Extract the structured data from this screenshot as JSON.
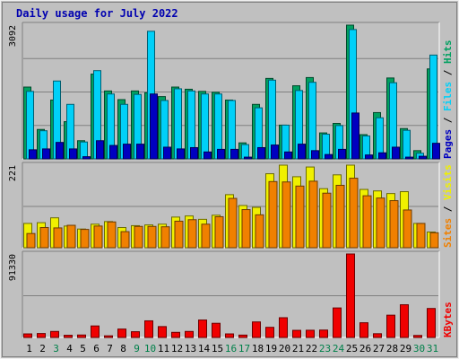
{
  "chart_data": {
    "type": "bar",
    "title": "Daily usage for July 2022",
    "x": [
      "1",
      "2",
      "3",
      "4",
      "5",
      "6",
      "7",
      "8",
      "9",
      "10",
      "11",
      "12",
      "13",
      "14",
      "15",
      "16",
      "17",
      "18",
      "19",
      "20",
      "21",
      "22",
      "23",
      "24",
      "25",
      "26",
      "27",
      "28",
      "29",
      "30",
      "31"
    ],
    "weekend_days": [
      "3",
      "9",
      "10",
      "16",
      "17",
      "23",
      "24",
      "30",
      "31"
    ],
    "panels": [
      {
        "id": "hits_files_pages",
        "ymax_label": "3092",
        "ymax": 3092,
        "side_labels": [
          "Pages",
          "Files",
          "Hits"
        ],
        "series": [
          {
            "name": "Hits",
            "color": "#00a060",
            "values": [
              1660,
              680,
              1360,
              860,
              420,
              1960,
              1570,
              1370,
              1570,
              1530,
              1440,
              1660,
              1610,
              1560,
              1540,
              1360,
              370,
              1260,
              1860,
              780,
              1690,
              1880,
              600,
              820,
              3092,
              560,
              1070,
              1870,
              700,
              190,
              2080
            ]
          },
          {
            "name": "Files",
            "color": "#00d0f8",
            "values": [
              1560,
              650,
              1800,
              1260,
              390,
              2040,
              1500,
              1260,
              1490,
              2950,
              1350,
              1620,
              1570,
              1500,
              1500,
              1350,
              330,
              1180,
              1820,
              780,
              1580,
              1770,
              570,
              770,
              2990,
              530,
              950,
              1760,
              660,
              130,
              2400
            ]
          },
          {
            "name": "Pages",
            "color": "#0000c0",
            "values": [
              210,
              230,
              380,
              230,
              50,
              420,
              310,
              340,
              340,
              1500,
              270,
              230,
              260,
              160,
              220,
              220,
              40,
              260,
              320,
              160,
              340,
              190,
              100,
              220,
              1060,
              90,
              140,
              270,
              40,
              60,
              360
            ]
          }
        ]
      },
      {
        "id": "visits_sites",
        "ymax_label": "221",
        "ymax": 221,
        "side_labels": [
          "Sites",
          "Visits"
        ],
        "series": [
          {
            "name": "Visits",
            "color": "#f0f000",
            "values": [
              65,
              67,
              80,
              58,
              50,
              63,
              70,
              54,
              59,
              61,
              63,
              82,
              85,
              76,
              87,
              142,
              113,
              108,
              198,
              221,
              190,
              216,
              158,
              195,
              221,
              156,
              152,
              145,
              150,
              65,
              42
            ]
          },
          {
            "name": "Sites",
            "color": "#f08000",
            "values": [
              38,
              54,
              53,
              60,
              49,
              58,
              69,
              43,
              57,
              57,
              56,
              71,
              75,
              63,
              83,
              132,
              102,
              88,
              177,
              176,
              165,
              178,
              146,
              167,
              186,
              139,
              133,
              126,
              101,
              65,
              40
            ]
          }
        ]
      },
      {
        "id": "kbytes",
        "ymax_label": "91330",
        "ymax": 91330,
        "side_labels": [
          "KBytes"
        ],
        "series": [
          {
            "name": "KBytes",
            "color": "#f00000",
            "values": [
              3900,
              4300,
              6600,
              2400,
              2700,
              12600,
              1800,
              9200,
              6300,
              18200,
              11900,
              5600,
              6600,
              19100,
              15500,
              3900,
              2600,
              17000,
              11100,
              21600,
              7800,
              7900,
              8100,
              32300,
              91330,
              16100,
              4100,
              24400,
              35800,
              2200,
              31700
            ]
          }
        ]
      }
    ]
  }
}
